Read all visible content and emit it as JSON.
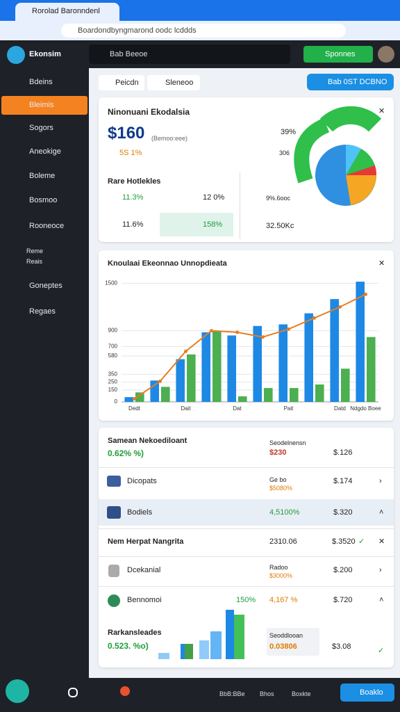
{
  "browser": {
    "tab": "Rorolad Baronndenl",
    "url": "Boardondbyngmarond oodc lcddds"
  },
  "header": {
    "logo": "Ekonsim",
    "search": "Bab Beeoe",
    "button": "Sponnes"
  },
  "sidebar": [
    "Bdeins",
    "Bleimis",
    "Sogors",
    "Aneokige",
    "Boleme",
    "Bosmoo",
    "Rooneoce",
    "Reme",
    "Reais",
    "Goneptes",
    "Regaes"
  ],
  "toolbar": {
    "pills": [
      "Peicdn",
      "Sleneoo"
    ],
    "action": "Bab 0ST DCBNO"
  },
  "summary": {
    "title": "Ninonuani Ekodalsia",
    "amount": "$160",
    "amount_note": "(Bemoo:eee)",
    "change": "5S 1%",
    "subtitle": "Rare Hotlekles",
    "stats": [
      "11.3%",
      "12 0%",
      "11.6%",
      "158%"
    ],
    "side": [
      "39%",
      "306",
      "9%.6ooc",
      "32.50Kc"
    ]
  },
  "chart_data": {
    "type": "bar",
    "title": "Knoulaai Ekeonnao Unnopdieata",
    "categories": [
      "Dedt",
      null,
      "Dait",
      null,
      "Dat",
      null,
      "Pait",
      null,
      "Datd",
      "Ndgdo Boee"
    ],
    "series": [
      {
        "color": "#1e88e5",
        "values": [
          60,
          270,
          540,
          880,
          840,
          960,
          980,
          1120,
          1300,
          1520
        ]
      },
      {
        "color": "#4caf50",
        "values": [
          120,
          190,
          600,
          900,
          70,
          175,
          175,
          220,
          420,
          820
        ]
      },
      {
        "type": "line",
        "color": "#e67e22",
        "values": [
          40,
          260,
          640,
          900,
          880,
          820,
          920,
          1060,
          1200,
          1360
        ]
      }
    ],
    "ylim": [
      0,
      1600
    ],
    "yticks": [
      0,
      150,
      250,
      350,
      580,
      700,
      900,
      1500
    ],
    "grid": true
  },
  "list": {
    "top": {
      "title": "Samean Nekoediloant",
      "change": "0.62% %)",
      "label": "Seodelnensn",
      "value": "$230",
      "total": "$.126"
    },
    "rows": [
      {
        "name": "Dicopats",
        "a": "Ge bo",
        "b": "$5080%",
        "c": "$.174"
      },
      {
        "name": "Bodiels",
        "b": "4,5100%",
        "c": "$.320"
      }
    ],
    "section": {
      "title": "Nem Herpat Nangrita",
      "a": "2310.06",
      "c": "$.3520"
    },
    "rows2": [
      {
        "name": "Dcekanial",
        "a": "Radoo",
        "b": "$3000%",
        "c": "$.200"
      },
      {
        "name": "Bennomoi",
        "g": "150%",
        "b": "4,167 %",
        "c": "$.720"
      }
    ],
    "bottom": {
      "title": "Rarkansleades",
      "change": "0.523. %o)",
      "label": "Seoddlooan",
      "value": "0.03806",
      "total": "$3.08"
    }
  },
  "taskbar": [
    "BbB:BBe",
    "Bhos",
    "Boxkte",
    "Boaklo"
  ]
}
